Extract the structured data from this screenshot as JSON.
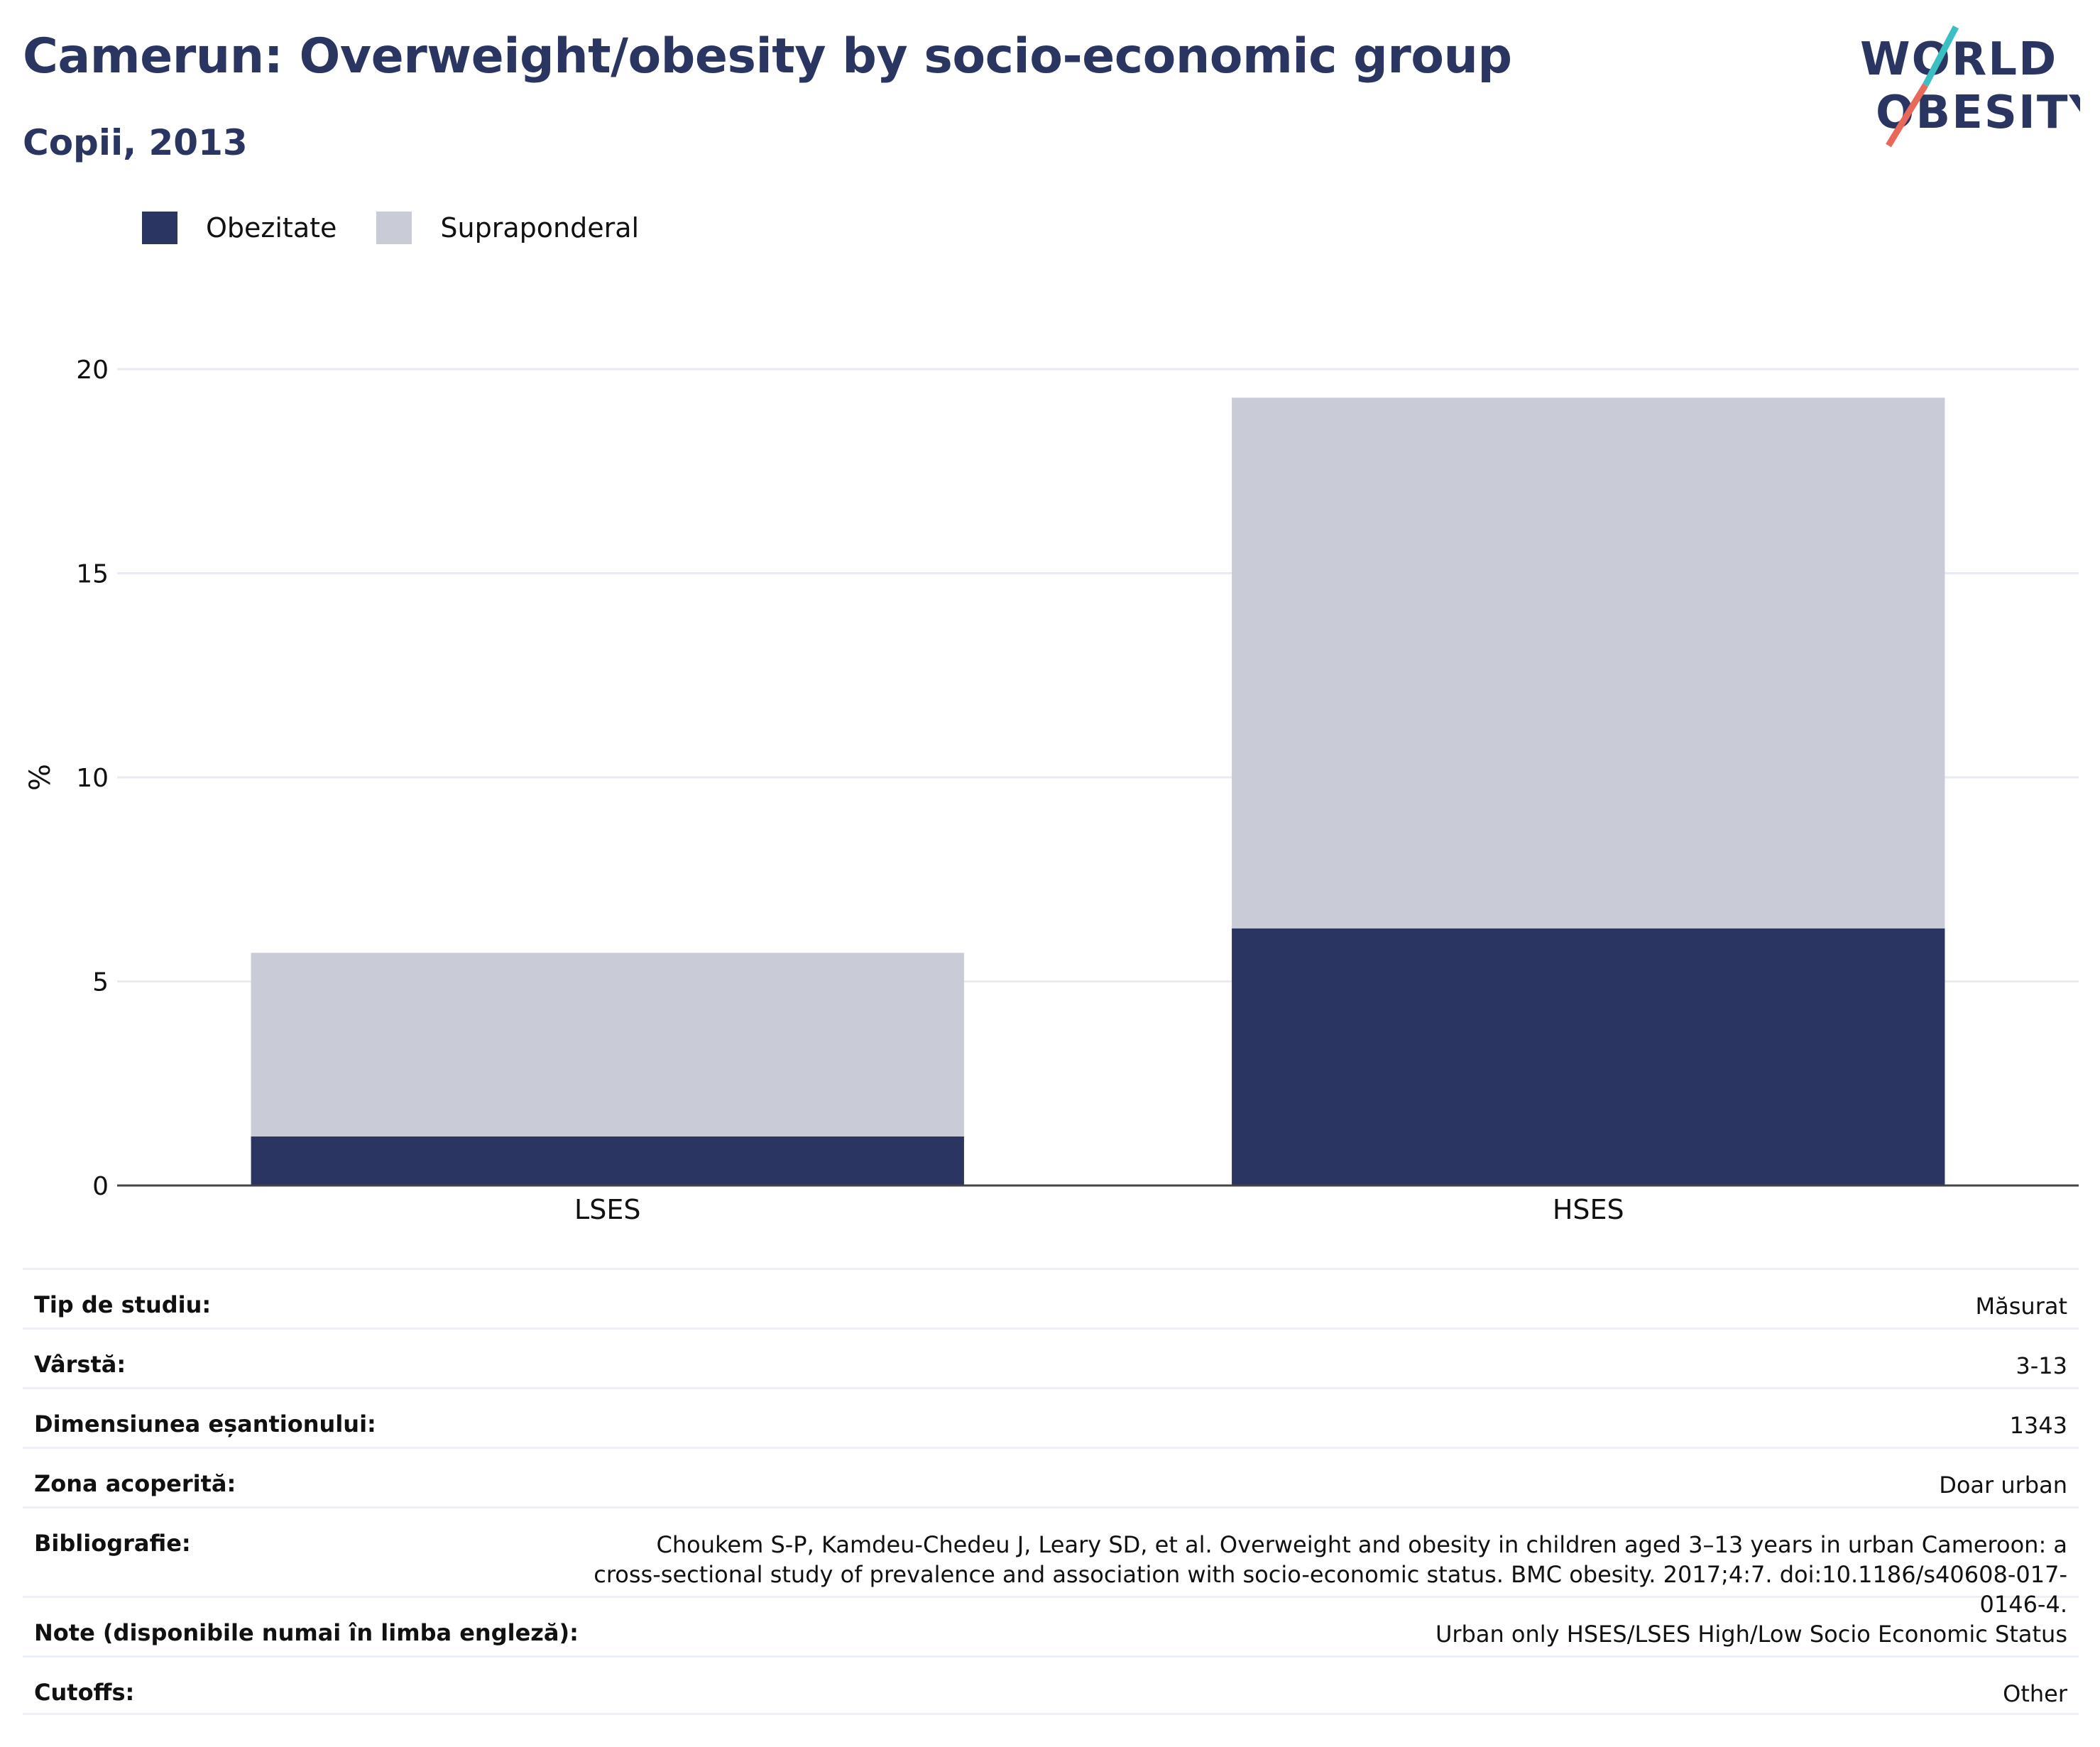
{
  "header": {
    "title": "Camerun: Overweight/obesity by socio-economic group",
    "subtitle": "Copii, 2013"
  },
  "logo": {
    "line1": "WORLD",
    "line2": "OBESITY"
  },
  "colors": {
    "obesity": "#2a3561",
    "overweight": "#c9ccd7",
    "accent_red": "#e8685a",
    "accent_teal": "#3cbfc2"
  },
  "chart_data": {
    "type": "bar",
    "stacked": true,
    "categories": [
      "LSES",
      "HSES"
    ],
    "series": [
      {
        "name": "Obezitate",
        "values": [
          1.2,
          6.3
        ],
        "color": "#2a3561"
      },
      {
        "name": "Supraponderal",
        "values": [
          4.5,
          13.0
        ],
        "color": "#c9ccd7"
      }
    ],
    "ylabel": "%",
    "xlabel": "",
    "ylim": [
      0,
      20
    ],
    "yticks": [
      0,
      5,
      10,
      15,
      20
    ],
    "grid": true,
    "legend_position": "top-left"
  },
  "info": [
    {
      "label": "Tip de studiu:",
      "value": "Măsurat"
    },
    {
      "label": "Vârstă:",
      "value": "3-13"
    },
    {
      "label": "Dimensiunea eșantionului:",
      "value": "1343"
    },
    {
      "label": "Zona acoperită:",
      "value": "Doar urban"
    },
    {
      "label": "Bibliografie:",
      "value": "Choukem S-P, Kamdeu-Chedeu J, Leary SD, et al. Overweight and obesity in children aged 3–13 years in urban Cameroon: a cross-sectional study of prevalence and association with socio-economic status. BMC obesity. 2017;4:7. doi:10.1186/s40608-017-0146-4."
    },
    {
      "label": "Note (disponibile numai în limba engleză):",
      "value": "Urban only HSES/LSES High/Low Socio Economic Status"
    },
    {
      "label": "Cutoffs:",
      "value": "Other"
    }
  ]
}
